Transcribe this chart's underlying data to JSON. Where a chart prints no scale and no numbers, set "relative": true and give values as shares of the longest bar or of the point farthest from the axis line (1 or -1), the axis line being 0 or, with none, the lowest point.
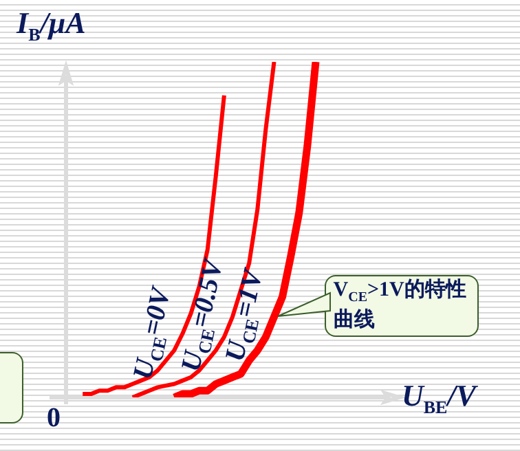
{
  "chart_data": {
    "type": "line",
    "relative": true,
    "xlabel": "U$_{BE}$/V",
    "ylabel": "I$_{B}$/μA",
    "marker": "none",
    "line_style": "solid",
    "categories": [
      null,
      null,
      null,
      null,
      null,
      null,
      null,
      null,
      null,
      null,
      null,
      null,
      null,
      null,
      null,
      null,
      null,
      null,
      null,
      null,
      null,
      null,
      null,
      null,
      null,
      null,
      null,
      null,
      null,
      null,
      null,
      null,
      null,
      null,
      null,
      null,
      null,
      null,
      null,
      null,
      null
    ],
    "series": [
      {
        "color": "#ff0000",
        "values": [
          null,
          null,
          0.01,
          0.01,
          0.02,
          0.02,
          0.03,
          0.03,
          0.04,
          0.05,
          0.06,
          0.08,
          0.11,
          0.14,
          0.19,
          0.25,
          0.33,
          0.44,
          0.66,
          0.9,
          null,
          null,
          null,
          null,
          null,
          null,
          null,
          null,
          null,
          null,
          null,
          null,
          null,
          null,
          null,
          null,
          null,
          null,
          null,
          null,
          null
        ]
      },
      {
        "color": "#ff0000",
        "values": [
          null,
          null,
          null,
          null,
          null,
          null,
          null,
          null,
          0,
          0.01,
          0.02,
          0.03,
          0.035,
          0.04,
          0.05,
          0.06,
          0.08,
          0.11,
          0.14,
          0.18,
          0.24,
          0.32,
          0.4,
          0.56,
          0.8,
          1,
          null,
          null,
          null,
          null,
          null,
          null,
          null,
          null,
          null,
          null,
          null,
          null,
          null,
          null,
          null
        ]
      },
      {
        "color": "#ff0000",
        "values": [
          null,
          null,
          null,
          null,
          null,
          null,
          null,
          null,
          null,
          null,
          null,
          null,
          null,
          0,
          0.01,
          0.01,
          0.02,
          0.02,
          0.04,
          0.05,
          0.06,
          0.07,
          0.11,
          0.14,
          0.18,
          0.24,
          0.3,
          0.42,
          0.55,
          0.75,
          1,
          null,
          null,
          null,
          null,
          null,
          null,
          null,
          null,
          null,
          null
        ]
      }
    ],
    "annotations": [
      "0",
      "U$_{CE}$=0V",
      "U$_{CE}$=0.5V",
      "U$_{CE}$=1V",
      "V$_{CE}$>1V的特性曲线"
    ]
  }
}
